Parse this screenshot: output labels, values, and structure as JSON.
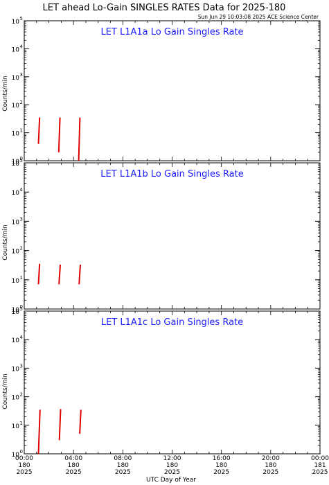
{
  "title": "LET ahead Lo-Gain SINGLES RATES Data for 2025-180",
  "timestamp": "Sun Jun 29 10:03:08 2025 ACE Science Center",
  "ylabel": "Counts/min",
  "xlabel": "UTC Day of Year",
  "colors": {
    "data": "#e00000",
    "panel_title": "#1a1aff",
    "axes": "#000000"
  },
  "chart_data": [
    {
      "type": "line",
      "title": "LET L1A1a Lo Gain Singles Rate",
      "x_range_hours": [
        0,
        24
      ],
      "yscale": "log",
      "ylim": [
        1,
        100000
      ],
      "ytick_labels": [
        {
          "b": "10",
          "e": "0"
        },
        {
          "b": "10",
          "e": "1"
        },
        {
          "b": "10",
          "e": "2"
        },
        {
          "b": "10",
          "e": "3"
        },
        {
          "b": "10",
          "e": "4"
        },
        {
          "b": "10",
          "e": "5"
        }
      ],
      "segments": [
        {
          "x": [
            1.15,
            1.25
          ],
          "y": [
            4,
            35
          ]
        },
        {
          "x": [
            2.8,
            2.9
          ],
          "y": [
            2,
            35
          ]
        },
        {
          "x": [
            4.42,
            4.52
          ],
          "y": [
            1,
            35
          ]
        }
      ]
    },
    {
      "type": "line",
      "title": "LET L1A1b Lo Gain Singles Rate",
      "x_range_hours": [
        0,
        24
      ],
      "yscale": "log",
      "ylim": [
        1,
        100000
      ],
      "ytick_labels": [
        {
          "b": "10",
          "e": "0"
        },
        {
          "b": "10",
          "e": "1"
        },
        {
          "b": "10",
          "e": "2"
        },
        {
          "b": "10",
          "e": "3"
        },
        {
          "b": "10",
          "e": "4"
        },
        {
          "b": "10",
          "e": "5"
        }
      ],
      "segments": [
        {
          "x": [
            1.15,
            1.25
          ],
          "y": [
            7,
            35
          ]
        },
        {
          "x": [
            2.82,
            2.92
          ],
          "y": [
            7,
            33
          ]
        },
        {
          "x": [
            4.45,
            4.55
          ],
          "y": [
            7,
            33
          ]
        }
      ]
    },
    {
      "type": "line",
      "title": "LET L1A1c Lo Gain Singles Rate",
      "x_range_hours": [
        0,
        24
      ],
      "yscale": "log",
      "ylim": [
        1,
        100000
      ],
      "ytick_labels": [
        {
          "b": "10",
          "e": "0"
        },
        {
          "b": "10",
          "e": "1"
        },
        {
          "b": "10",
          "e": "2"
        },
        {
          "b": "10",
          "e": "3"
        },
        {
          "b": "10",
          "e": "4"
        },
        {
          "b": "10",
          "e": "5"
        }
      ],
      "segments": [
        {
          "x": [
            1.15,
            1.28
          ],
          "y": [
            1,
            35
          ]
        },
        {
          "x": [
            2.85,
            2.95
          ],
          "y": [
            3,
            37
          ]
        },
        {
          "x": [
            4.5,
            4.6
          ],
          "y": [
            5,
            35
          ]
        }
      ]
    }
  ],
  "xticks": [
    {
      "hours": 0,
      "l1": "00:00",
      "l2": "180",
      "l3": "2025"
    },
    {
      "hours": 4,
      "l1": "04:00",
      "l2": "180",
      "l3": "2025"
    },
    {
      "hours": 8,
      "l1": "08:00",
      "l2": "180",
      "l3": "2025"
    },
    {
      "hours": 12,
      "l1": "12:00",
      "l2": "180",
      "l3": "2025"
    },
    {
      "hours": 16,
      "l1": "16:00",
      "l2": "180",
      "l3": "2025"
    },
    {
      "hours": 20,
      "l1": "20:00",
      "l2": "180",
      "l3": "2025"
    },
    {
      "hours": 24,
      "l1": "00:00",
      "l2": "181",
      "l3": "2025"
    }
  ]
}
